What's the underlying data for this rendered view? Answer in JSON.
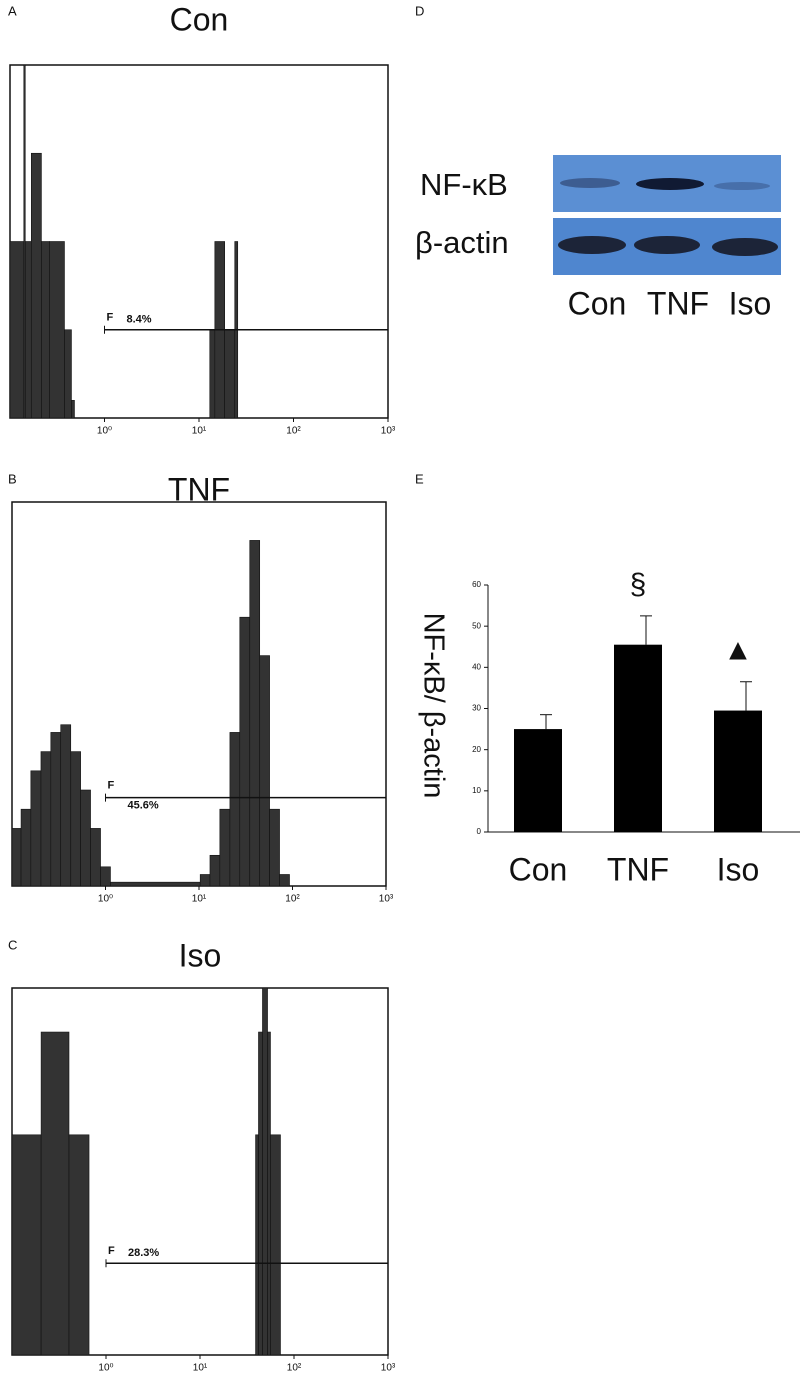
{
  "panel_letters": [
    "A",
    "B",
    "C",
    "D",
    "E"
  ],
  "blot": {
    "rows": [
      "NF-κB",
      "β-actin"
    ],
    "lanes": [
      "Con",
      "TNF",
      "Iso"
    ]
  },
  "chart_data": [
    {
      "type": "histogram",
      "title": "Con",
      "xscale": "log",
      "xlim": [
        0.1,
        1000
      ],
      "ylim": [
        0,
        100
      ],
      "xticks": [
        {
          "value": 1,
          "label": "10⁰"
        },
        {
          "value": 10,
          "label": "10¹"
        },
        {
          "value": 100,
          "label": "10²"
        },
        {
          "value": 1000,
          "label": "10³"
        }
      ],
      "bins": [
        0.1,
        0.14,
        0.145,
        0.168,
        0.215,
        0.261,
        0.377,
        0.447,
        0.481,
        13.0,
        14.7,
        18.7,
        23.9,
        25.7
      ],
      "values": [
        50,
        100,
        50,
        75,
        50,
        50,
        25,
        5,
        0,
        25,
        50,
        25,
        50
      ],
      "color": "#333333",
      "annotations": [
        "F",
        "8.4%"
      ]
    },
    {
      "type": "histogram",
      "title": "TNF",
      "xscale": "log",
      "xlim": [
        0.1,
        1000
      ],
      "ylim": [
        0,
        100
      ],
      "xticks": [
        {
          "value": 1,
          "label": "10⁰"
        },
        {
          "value": 10,
          "label": "10¹"
        },
        {
          "value": 100,
          "label": "10²"
        },
        {
          "value": 1000,
          "label": "10³"
        }
      ],
      "bins": [
        0.1,
        0.125,
        0.159,
        0.204,
        0.26,
        0.332,
        0.425,
        0.542,
        0.692,
        0.885,
        1.13,
        10.3,
        13.1,
        16.7,
        21.4,
        27.3,
        34.9,
        44.6,
        56.9,
        72.7,
        92.9
      ],
      "values": [
        15,
        20,
        30,
        35,
        40,
        42,
        35,
        25,
        15,
        5,
        1,
        3,
        8,
        20,
        40,
        70,
        90,
        60,
        20,
        3
      ],
      "color": "#333333",
      "annotations": [
        "F",
        "45.6%"
      ]
    },
    {
      "type": "histogram",
      "title": "Iso",
      "xscale": "log",
      "xlim": [
        0.1,
        1000
      ],
      "ylim": [
        0,
        100
      ],
      "xticks": [
        {
          "value": 1,
          "label": "10⁰"
        },
        {
          "value": 10,
          "label": "10¹"
        },
        {
          "value": 100,
          "label": "10²"
        },
        {
          "value": 1000,
          "label": "10³"
        }
      ],
      "bins": [
        0.1,
        0.204,
        0.404,
        0.66,
        39,
        41.9,
        46.2,
        52.3,
        56.2,
        71.8
      ],
      "values": [
        60,
        88,
        60,
        0,
        60,
        88,
        100,
        88,
        60
      ],
      "color": "#333333",
      "annotations": [
        "F",
        "28.3%"
      ]
    },
    {
      "type": "bar",
      "y_label": "NF-κB/ β-actin",
      "categories": [
        "Con",
        "TNF",
        "Iso"
      ],
      "values": [
        25,
        45.5,
        29.5
      ],
      "errors": [
        3.5,
        7,
        7
      ],
      "significance": [
        null,
        "§",
        "▲"
      ],
      "color": "#000000",
      "ylim": [
        0,
        60
      ],
      "yticks": [
        0,
        10,
        20,
        30,
        40,
        50,
        60
      ]
    }
  ]
}
